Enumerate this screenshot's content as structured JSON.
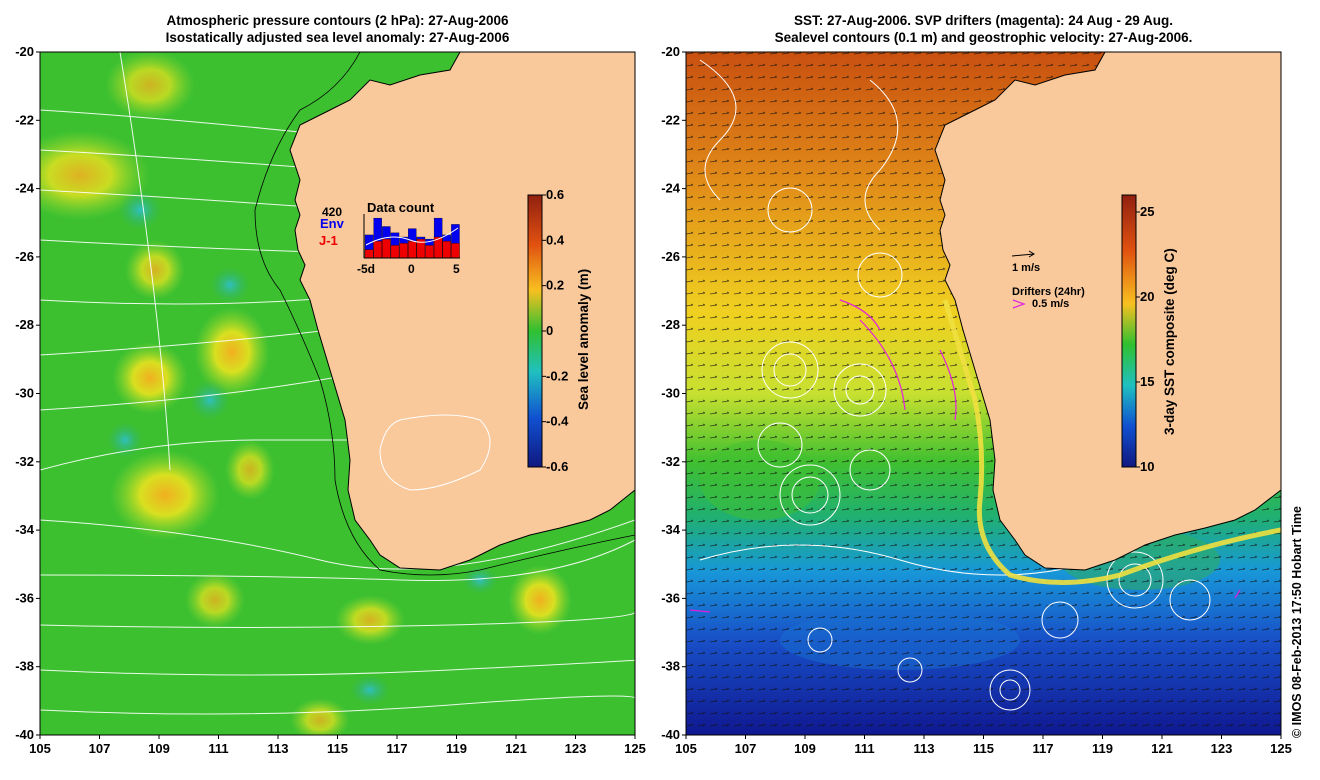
{
  "left_panel": {
    "title_line1": "Atmospheric pressure contours (2 hPa): 27-Aug-2006",
    "title_line2": "Isostatically adjusted sea level anomaly: 27-Aug-2006",
    "lat_ticks": [
      "-20",
      "-22",
      "-24",
      "-26",
      "-28",
      "-30",
      "-32",
      "-34",
      "-36",
      "-38",
      "-40"
    ],
    "lon_ticks": [
      "105",
      "107",
      "109",
      "111",
      "113",
      "115",
      "117",
      "119",
      "121",
      "123",
      "125"
    ],
    "colorbar": {
      "label": "Sea level anomaly (m)",
      "ticks": [
        "0.6",
        "0.4",
        "0.2",
        "0",
        "-0.2",
        "-0.4",
        "-0.6"
      ],
      "range": [
        -0.6,
        0.6
      ]
    },
    "inset": {
      "count": "420",
      "env_label": "Env",
      "j1_label": "J-1",
      "title": "Data count",
      "x_ticks": [
        "-5d",
        "0",
        "5"
      ],
      "env_bars": [
        0.55,
        0.95,
        0.75,
        0.6,
        0.5,
        0.7,
        0.5,
        0.45,
        0.95,
        0.55,
        0.8
      ],
      "j1_bars": [
        0.2,
        0.4,
        0.45,
        0.3,
        0.35,
        0.4,
        0.45,
        0.3,
        0.5,
        0.4,
        0.35
      ]
    }
  },
  "right_panel": {
    "title_line1": "SST: 27-Aug-2006. SVP drifters (magenta): 24 Aug - 29 Aug.",
    "title_line2": "Sealevel contours (0.1 m) and geostrophic velocity: 27-Aug-2006.",
    "lat_ticks": [
      "-20",
      "-22",
      "-24",
      "-26",
      "-28",
      "-30",
      "-32",
      "-34",
      "-36",
      "-38",
      "-40"
    ],
    "lon_ticks": [
      "105",
      "107",
      "109",
      "111",
      "113",
      "115",
      "117",
      "119",
      "121",
      "123",
      "125"
    ],
    "colorbar": {
      "label": "3-day SST composite (deg C)",
      "ticks": [
        "25",
        "20",
        "15",
        "10"
      ],
      "range": [
        10,
        26
      ]
    },
    "velocity_legend": "1 m/s",
    "drifters_legend": "Drifters (24hr)",
    "drifters_speed": "0.5 m/s"
  },
  "credit": "© IMOS 08-Feb-2013 17:50 Hobart Time",
  "colors": {
    "land": "#f9c89b",
    "ocean_left": "#38c030",
    "ocean_right_warm": "#e07818",
    "ocean_right_cold": "#1838b8",
    "drifter": "#e020e0",
    "env": "#0000ee",
    "j1": "#ee0000"
  }
}
